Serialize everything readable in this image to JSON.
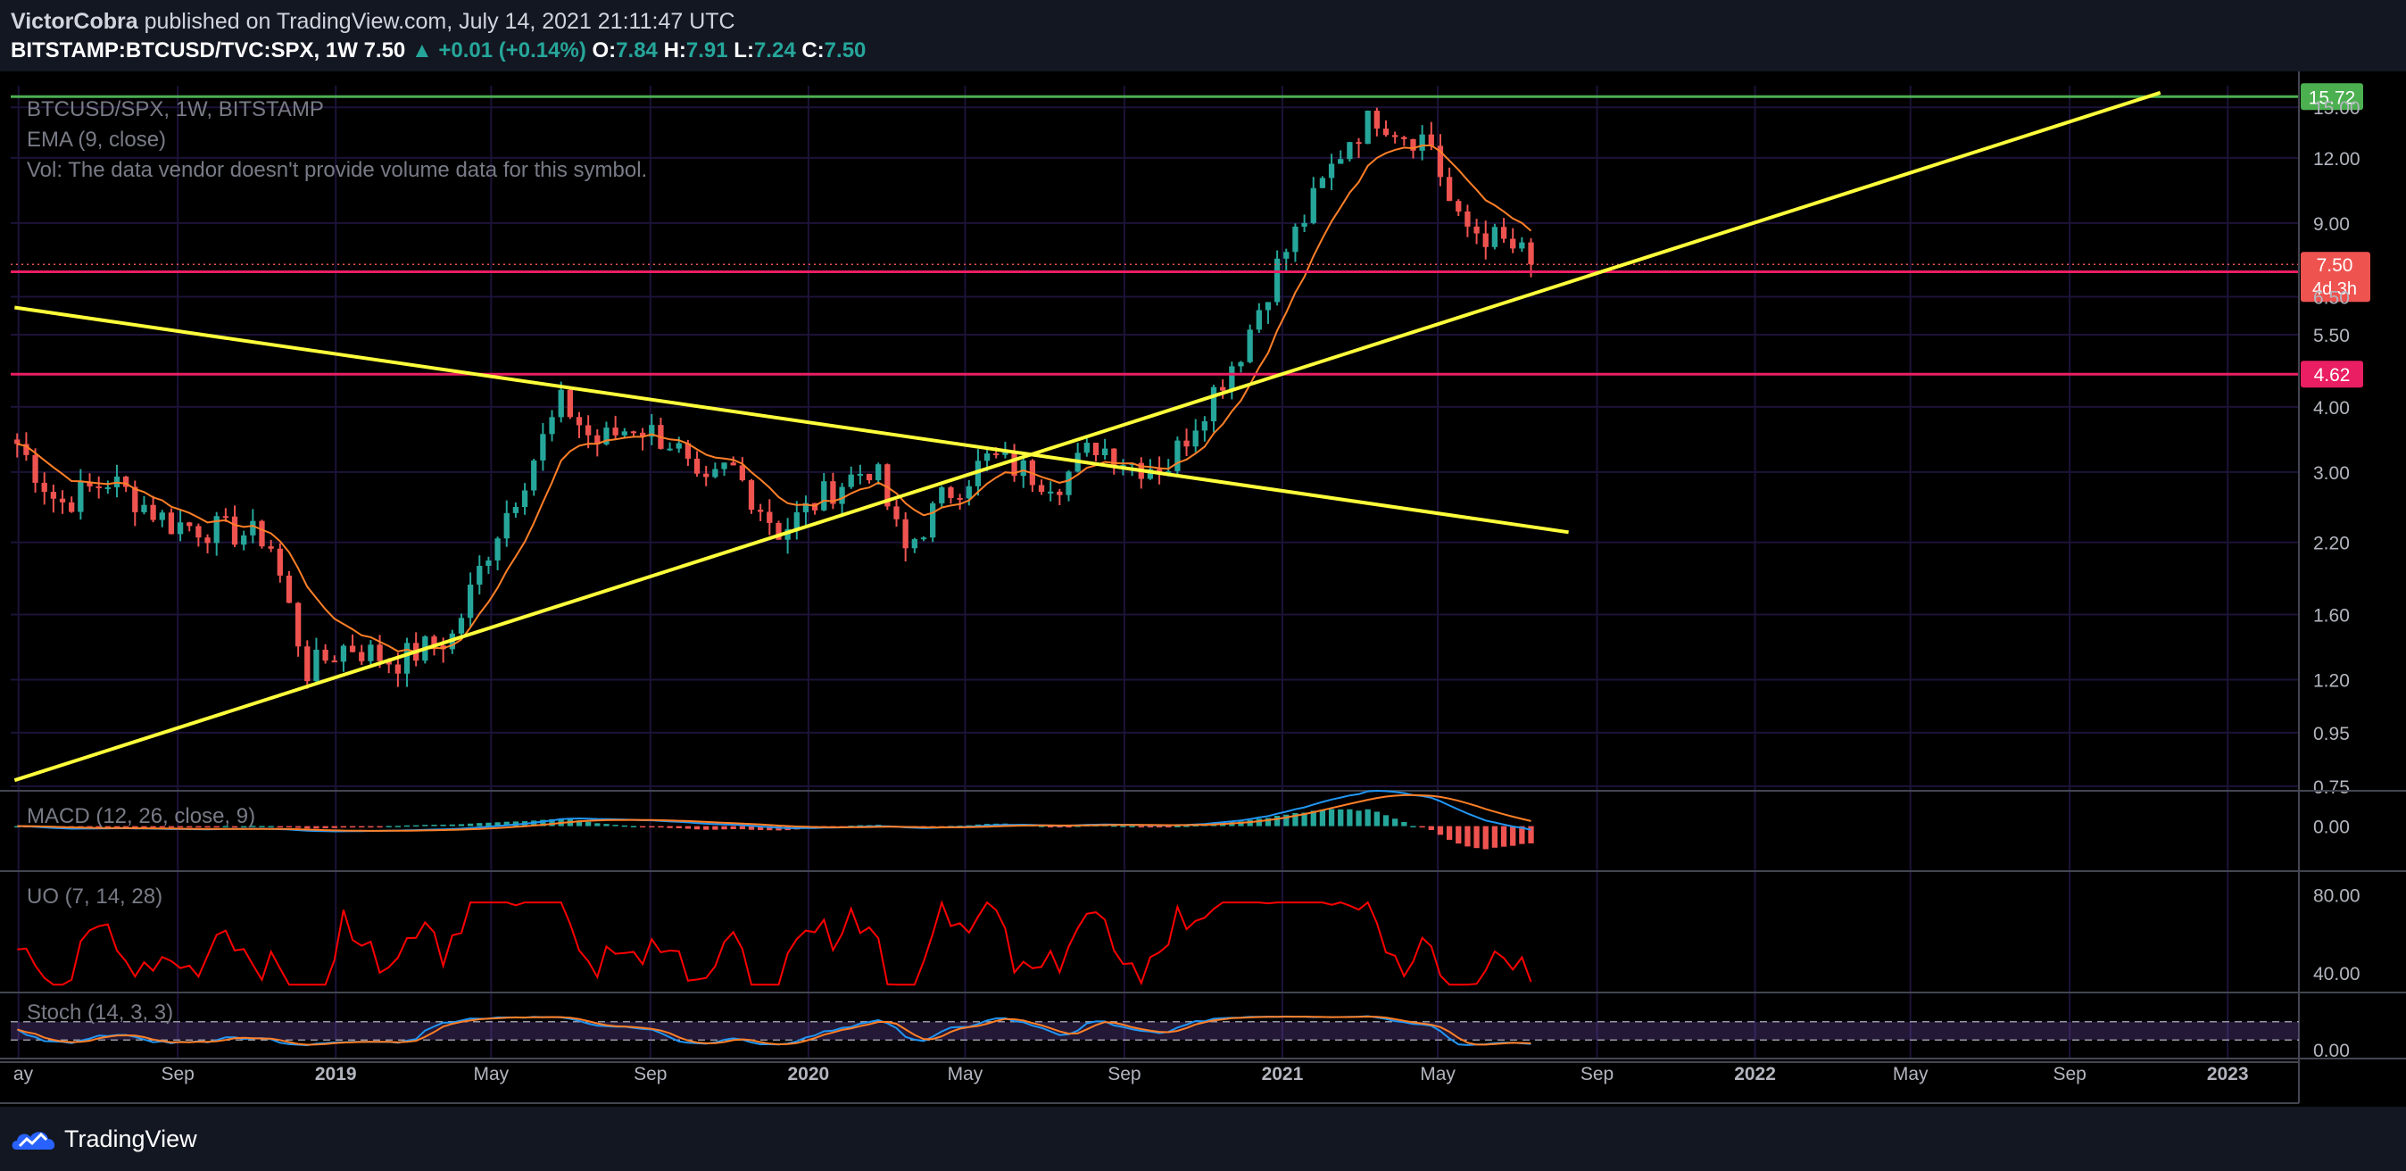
{
  "header": {
    "author": "VictorCobra",
    "published_text": "published on TradingView.com, July 14, 2021 21:11:47 UTC",
    "symbol": "BITSTAMP:BTCUSD/TVC:SPX, 1W",
    "last": "7.50",
    "change": "+0.01 (+0.14%)",
    "open_label": "O:",
    "open": "7.84",
    "high_label": "H:",
    "high": "7.91",
    "low_label": "L:",
    "low": "7.24",
    "close_label": "C:",
    "close": "7.50"
  },
  "footer": {
    "brand": "TradingView"
  },
  "colors": {
    "background": "#131722",
    "up_candle": "#26a69a",
    "down_candle": "#ef5350",
    "ema": "#ff7f27",
    "trendline": "#ffff3b",
    "resistance": "#4caf50",
    "support": "#e91e63",
    "macd_line": "#2196f3",
    "signal_line": "#ff7f27",
    "uo_line": "#ff0000",
    "stoch_k": "#2196f3",
    "stoch_d": "#ff7f27",
    "stoch_band": "#7e57c2"
  },
  "chart_data": [
    {
      "type": "candlestick",
      "title": "",
      "legend": [
        "BTCUSD/SPX, 1W, BITSTAMP",
        "EMA (9, close)",
        "Vol: The data vendor doesn't provide volume data for this symbol."
      ],
      "scale": "log",
      "x_tick_labels": [
        "ay",
        "Sep",
        "2019",
        "May",
        "Sep",
        "2020",
        "May",
        "Sep",
        "2021",
        "May",
        "Sep",
        "2022",
        "May",
        "Sep",
        "2023"
      ],
      "x_tick_dates": [
        "2018-05",
        "2018-09",
        "2019-01",
        "2019-05",
        "2019-09",
        "2020-01",
        "2020-05",
        "2020-09",
        "2021-01",
        "2021-05",
        "2021-09",
        "2022-01",
        "2022-05",
        "2022-09",
        "2023-01"
      ],
      "y_tick_labels": [
        "15.00",
        "12.00",
        "9.00",
        "6.50",
        "5.50",
        "4.00",
        "3.00",
        "2.20",
        "1.60",
        "1.20",
        "0.95",
        "0.75"
      ],
      "y_ticks": [
        15,
        12,
        9,
        6.5,
        5.5,
        4,
        3,
        2.2,
        1.6,
        1.2,
        0.95,
        0.75
      ],
      "ylim": [
        0.735,
        16.5
      ],
      "xlim": [
        "2018-04-25",
        "2023-02-25"
      ],
      "price_anchors": [
        {
          "date": "2018-04-30",
          "close": 3.4
        },
        {
          "date": "2018-06-01",
          "close": 2.6
        },
        {
          "date": "2018-07-10",
          "close": 2.9
        },
        {
          "date": "2018-08-25",
          "close": 2.4
        },
        {
          "date": "2018-11-10",
          "close": 2.25
        },
        {
          "date": "2018-12-10",
          "close": 1.25
        },
        {
          "date": "2019-01-10",
          "close": 1.4
        },
        {
          "date": "2019-02-15",
          "close": 1.3
        },
        {
          "date": "2019-04-01",
          "close": 1.45
        },
        {
          "date": "2019-05-01",
          "close": 2.2
        },
        {
          "date": "2019-06-25",
          "close": 4.1
        },
        {
          "date": "2019-07-20",
          "close": 3.4
        },
        {
          "date": "2019-08-20",
          "close": 3.7
        },
        {
          "date": "2019-09-20",
          "close": 3.4
        },
        {
          "date": "2019-10-10",
          "close": 2.7
        },
        {
          "date": "2019-11-01",
          "close": 3.1
        },
        {
          "date": "2019-12-10",
          "close": 2.3
        },
        {
          "date": "2020-01-20",
          "close": 2.8
        },
        {
          "date": "2020-02-20",
          "close": 3.1
        },
        {
          "date": "2020-03-15",
          "close": 2.1
        },
        {
          "date": "2020-04-15",
          "close": 2.7
        },
        {
          "date": "2020-05-20",
          "close": 3.2
        },
        {
          "date": "2020-06-25",
          "close": 2.95
        },
        {
          "date": "2020-07-15",
          "close": 2.9
        },
        {
          "date": "2020-08-10",
          "close": 3.4
        },
        {
          "date": "2020-09-10",
          "close": 3.1
        },
        {
          "date": "2020-10-05",
          "close": 3.1
        },
        {
          "date": "2020-11-01",
          "close": 4.0
        },
        {
          "date": "2020-12-01",
          "close": 5.2
        },
        {
          "date": "2020-12-25",
          "close": 7.2
        },
        {
          "date": "2021-01-20",
          "close": 9.4
        },
        {
          "date": "2021-02-20",
          "close": 13.0
        },
        {
          "date": "2021-03-15",
          "close": 14.5
        },
        {
          "date": "2021-04-05",
          "close": 13.4
        },
        {
          "date": "2021-04-25",
          "close": 13.0
        },
        {
          "date": "2021-05-15",
          "close": 9.0
        },
        {
          "date": "2021-06-05",
          "close": 8.6
        },
        {
          "date": "2021-06-30",
          "close": 8.0
        },
        {
          "date": "2021-07-14",
          "close": 7.5
        }
      ],
      "last_price": "7.50",
      "last_price_value": 7.5,
      "countdown": "4d 3h",
      "horizontal_levels": [
        {
          "label": "15.72",
          "value": 15.72,
          "color": "#4caf50"
        },
        {
          "label": "7.26",
          "value": 7.26,
          "color": "#e91e63"
        },
        {
          "label": "4.62",
          "value": 4.62,
          "color": "#e91e63"
        }
      ],
      "trendlines": [
        {
          "name": "ascending",
          "from": {
            "date": "2018-04-28",
            "value": 0.77
          },
          "to": {
            "date": "2022-11-10",
            "value": 16.0
          }
        },
        {
          "name": "descending",
          "from": {
            "date": "2018-04-28",
            "value": 6.2
          },
          "to": {
            "date": "2021-08-10",
            "value": 2.3
          }
        }
      ]
    },
    {
      "type": "line",
      "title": "",
      "legend": [
        "MACD (12, 26, close, 9)"
      ],
      "y_tick_labels": [
        "0.00"
      ],
      "y_ticks": [
        0
      ],
      "note_histogram": true
    },
    {
      "type": "line",
      "title": "",
      "legend": [
        "UO (7, 14, 28)"
      ],
      "y_tick_labels": [
        "80.00",
        "40.00"
      ],
      "y_ticks": [
        80,
        40
      ],
      "ylim": [
        30,
        92
      ]
    },
    {
      "type": "line",
      "title": "",
      "legend": [
        "Stoch (14, 3, 3)"
      ],
      "y_tick_labels": [
        "0.00"
      ],
      "y_ticks": [
        0
      ],
      "band": [
        20,
        80
      ]
    }
  ]
}
